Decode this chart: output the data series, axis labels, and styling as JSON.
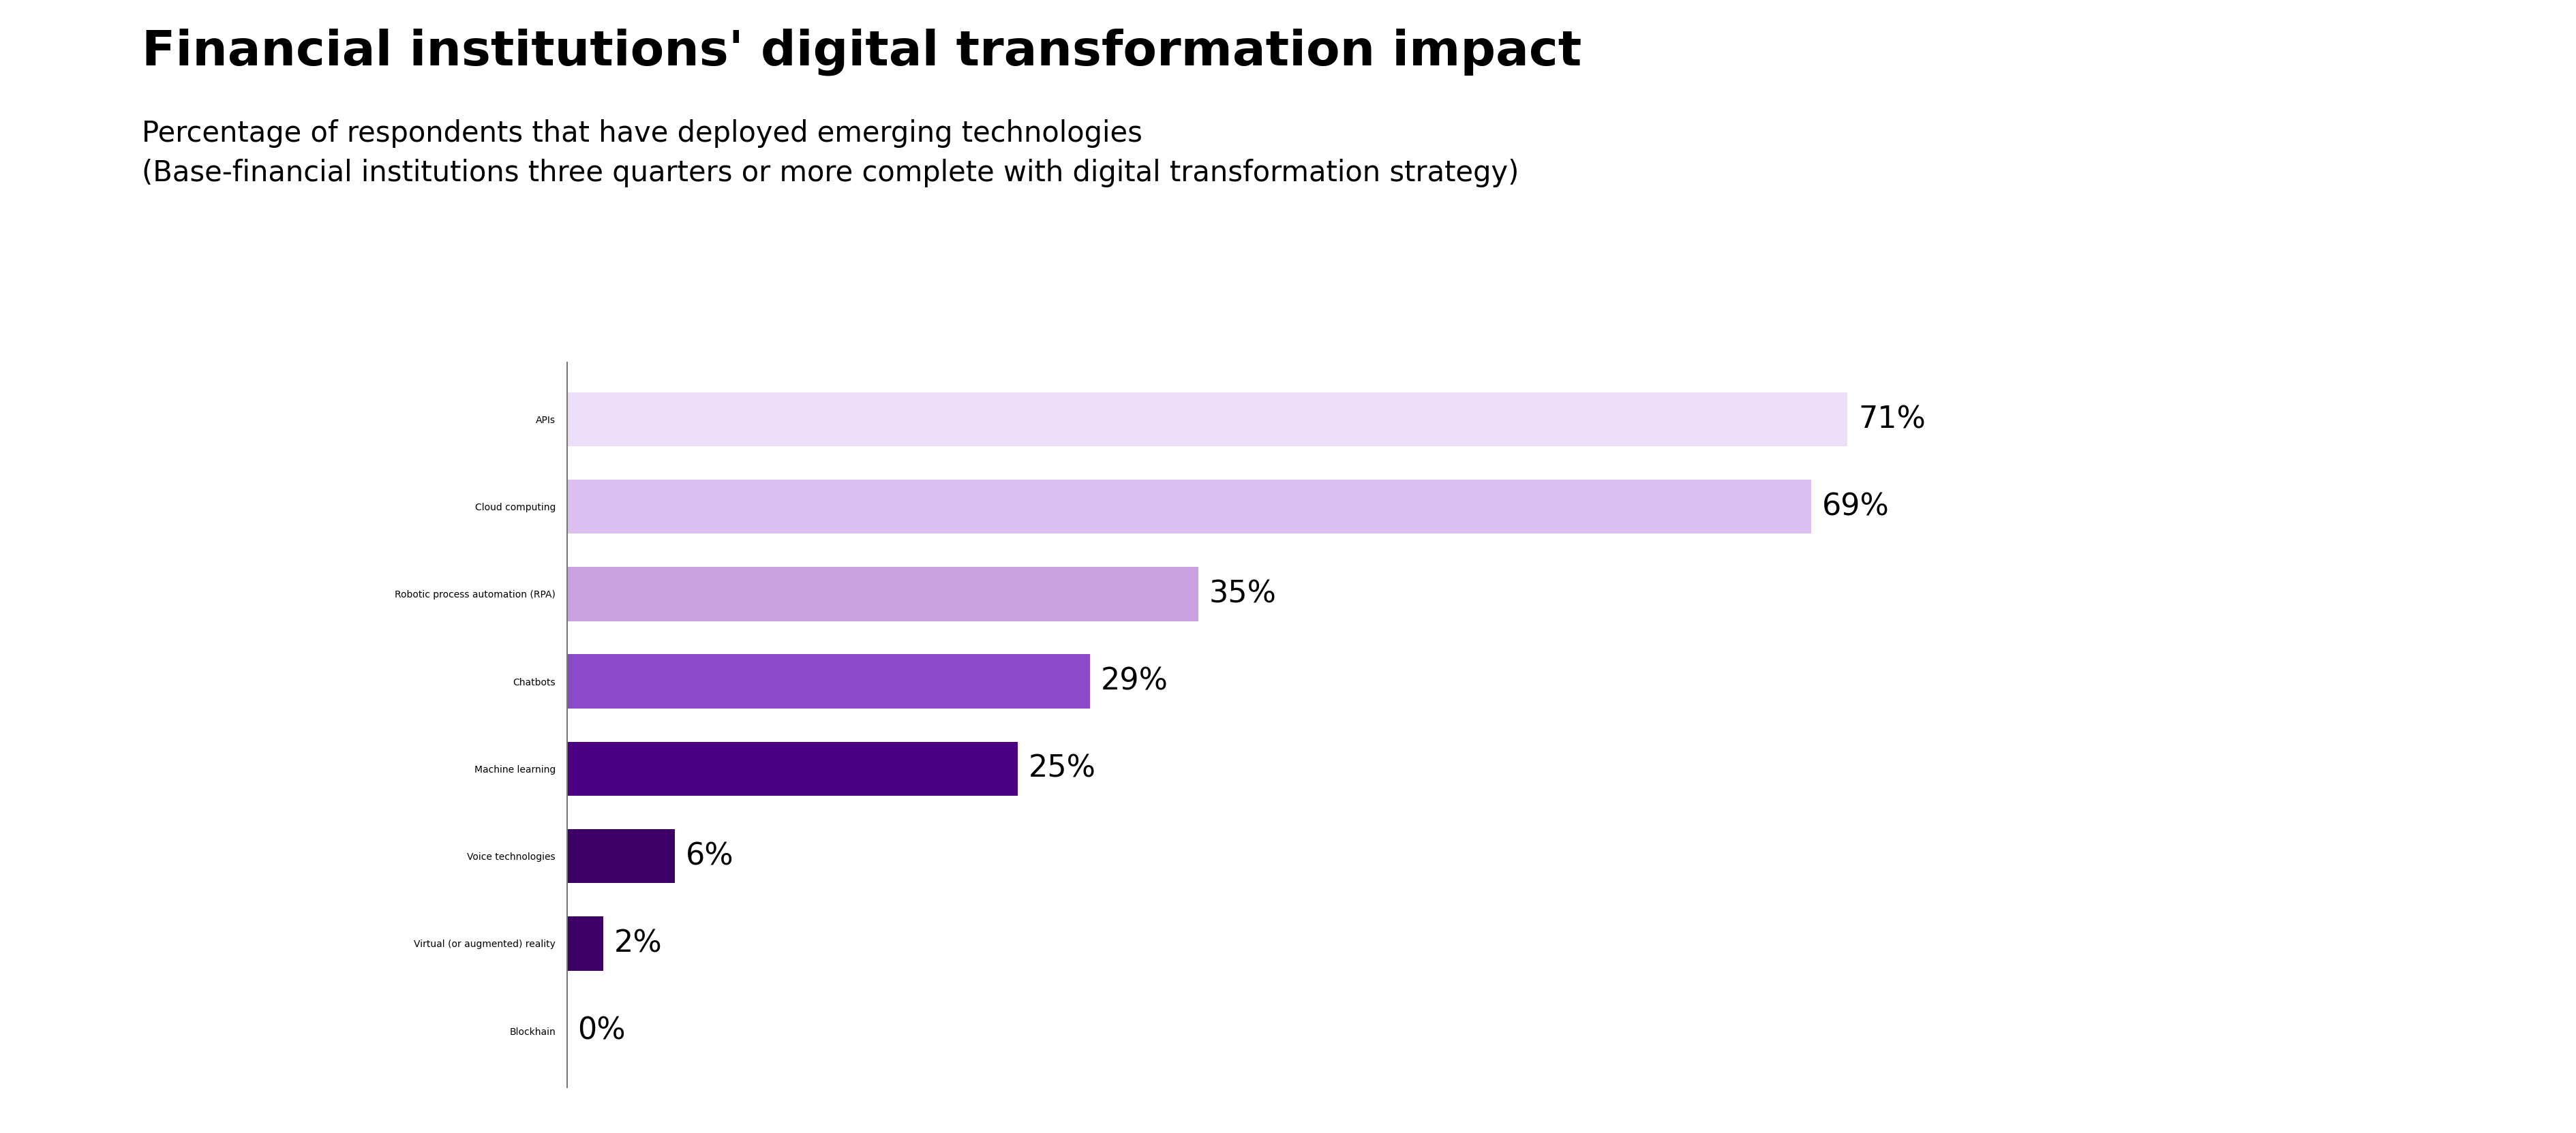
{
  "title": "Financial institutions' digital transformation impact",
  "subtitle_line1": "Percentage of respondents that have deployed emerging technologies",
  "subtitle_line2": "(Base-financial institutions three quarters or more complete with digital transformation strategy)",
  "categories": [
    "Blockhain",
    "Virtual (or augmented) reality",
    "Voice technologies",
    "Machine learning",
    "Chatbots",
    "Robotic process automation (RPA)",
    "Cloud computing",
    "APIs"
  ],
  "values": [
    0,
    2,
    6,
    25,
    29,
    35,
    69,
    71
  ],
  "bar_colors": [
    "#3d0066",
    "#3d0066",
    "#3d0066",
    "#4b0082",
    "#8b4bc8",
    "#c9a0e0",
    "#dbbff0",
    "#ecddf8"
  ],
  "value_labels": [
    "0%",
    "2%",
    "6%",
    "25%",
    "29%",
    "35%",
    "69%",
    "71%"
  ],
  "xlim": [
    0,
    80
  ],
  "title_fontsize": 52,
  "subtitle_fontsize": 30,
  "label_fontsize": 32,
  "value_fontsize": 32,
  "bar_height": 0.62,
  "background_color": "#ffffff",
  "text_color": "#000000",
  "spine_color": "#777777"
}
